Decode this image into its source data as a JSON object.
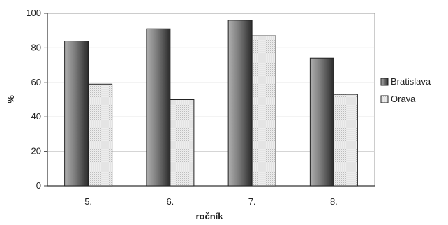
{
  "chart_data": {
    "type": "bar",
    "categories": [
      "5.",
      "6.",
      "7.",
      "8."
    ],
    "series": [
      {
        "name": "Bratislava",
        "values": [
          84,
          91,
          96,
          74
        ],
        "pattern": "gradient-dark",
        "color": "#666666"
      },
      {
        "name": "Orava",
        "values": [
          59,
          50,
          87,
          53
        ],
        "pattern": "dotted-light",
        "color": "#e6e6e6"
      }
    ],
    "xlabel": "ročník",
    "ylabel": "%",
    "ylim": [
      0,
      100
    ],
    "yticks": [
      0,
      20,
      40,
      60,
      80,
      100
    ],
    "grid": true,
    "legend": "right"
  }
}
